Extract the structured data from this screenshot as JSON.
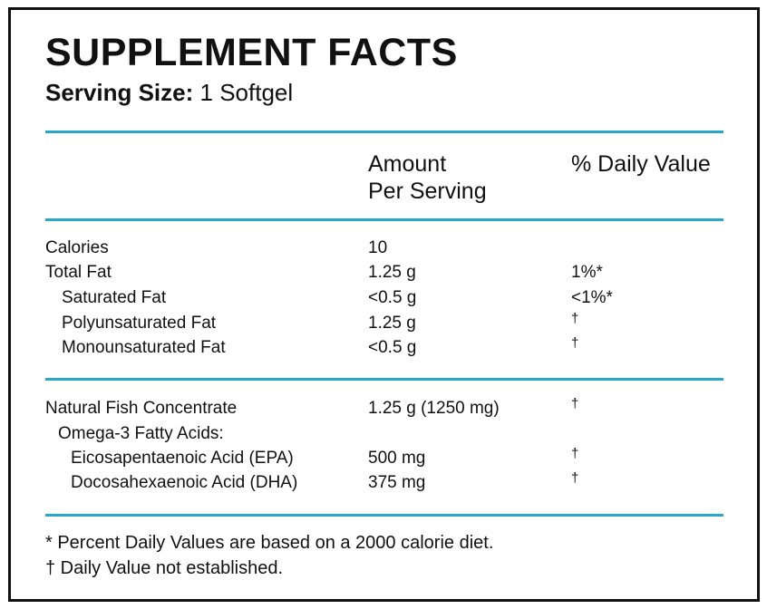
{
  "title": "SUPPLEMENT FACTS",
  "serving": {
    "label": "Serving Size:",
    "value": "1 Softgel"
  },
  "header": {
    "amount_line1": "Amount",
    "amount_line2": "Per Serving",
    "daily_value": "% Daily Value"
  },
  "section1": [
    {
      "name": "Calories",
      "amount": "10",
      "dv": ""
    },
    {
      "name": "Total Fat",
      "amount": "1.25 g",
      "dv": "1%*"
    },
    {
      "name": "Saturated Fat",
      "amount": "<0.5 g",
      "dv": "<1%*"
    },
    {
      "name": "Polyunsaturated Fat",
      "amount": "1.25 g",
      "dv": "†"
    },
    {
      "name": "Monounsaturated Fat",
      "amount": "<0.5 g",
      "dv": "†"
    }
  ],
  "section2": [
    {
      "name": "Natural Fish Concentrate",
      "amount": "1.25 g (1250 mg)",
      "dv": "†"
    },
    {
      "name": "Omega-3 Fatty Acids:",
      "amount": "",
      "dv": ""
    },
    {
      "name": "Eicosapentaenoic Acid (EPA)",
      "amount": "500 mg",
      "dv": "†"
    },
    {
      "name": "Docosahexaenoic Acid (DHA)",
      "amount": "375 mg",
      "dv": "†"
    }
  ],
  "footnotes": [
    "* Percent Daily Values are based on a 2000 calorie diet.",
    "† Daily Value not established."
  ],
  "colors": {
    "rule": "#2aa6c9",
    "border": "#111111"
  }
}
